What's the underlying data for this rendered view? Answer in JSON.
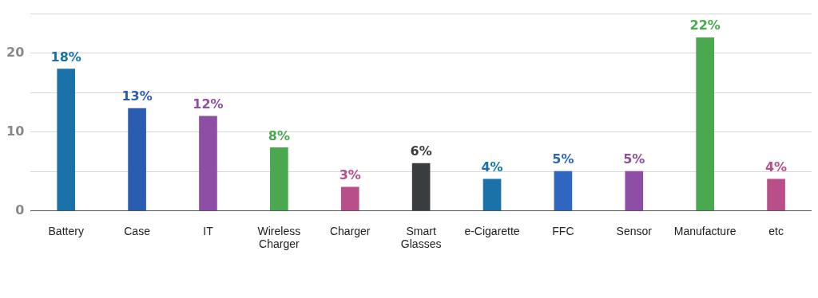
{
  "chart_data": {
    "type": "bar",
    "categories": [
      "Battery",
      "Case",
      "IT",
      "Wireless Charger",
      "Charger",
      "Smart Glasses",
      "e-Cigarette",
      "FFC",
      "Sensor",
      "Manufacture",
      "etc"
    ],
    "values": [
      18,
      13,
      12,
      8,
      3,
      6,
      4,
      5,
      5,
      22,
      4
    ],
    "colors": [
      "#1a72a8",
      "#2a5db0",
      "#8e4ea6",
      "#4aa84f",
      "#b84f8a",
      "#3a3d40",
      "#1a72a8",
      "#2e66c0",
      "#8e4ea6",
      "#4aa84f",
      "#b84f8a"
    ],
    "value_labels": [
      "18%",
      "13%",
      "12%",
      "8%",
      "3%",
      "6%",
      "4%",
      "5%",
      "5%",
      "22%",
      "4%"
    ],
    "ylim": [
      0,
      25
    ],
    "yticks": [
      0,
      {
        "value": 5,
        "label": null
      },
      10,
      {
        "value": 15,
        "label": null
      },
      20,
      {
        "value": 25,
        "label": null
      }
    ],
    "grid": "y",
    "legend": false
  }
}
